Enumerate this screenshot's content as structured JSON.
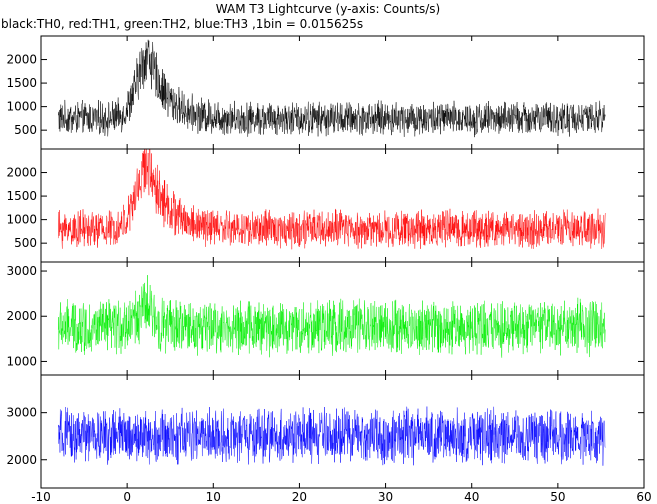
{
  "chart_data": {
    "type": "line",
    "title": "WAM T3 Lightcurve (y-axis: Counts/s)",
    "subtitle": "black:TH0, red:TH1, green:TH2, blue:TH3 ,1bin = 0.015625s",
    "xlabel": "",
    "ylabel": "",
    "xlim": [
      -10,
      60
    ],
    "x_ticks": [
      -10,
      0,
      10,
      20,
      30,
      40,
      50,
      60
    ],
    "grid": false,
    "legend": "none",
    "data_x_range": [
      -8,
      55.5
    ],
    "panels": [
      {
        "name": "TH0",
        "color": "#000000",
        "ylim": [
          100,
          2500
        ],
        "y_ticks": [
          500,
          1000,
          1500,
          2000
        ],
        "baseline": 750,
        "noise_amplitude": 300,
        "peak_center_x": 2.5,
        "peak_value": 2100,
        "decay_end_x": 7
      },
      {
        "name": "TH1",
        "color": "#ff0000",
        "ylim": [
          100,
          2500
        ],
        "y_ticks": [
          500,
          1000,
          1500,
          2000
        ],
        "baseline": 800,
        "noise_amplitude": 330,
        "peak_center_x": 2.5,
        "peak_value": 2200,
        "decay_end_x": 7
      },
      {
        "name": "TH2",
        "color": "#00ee00",
        "ylim": [
          700,
          3200
        ],
        "y_ticks": [
          1000,
          2000,
          3000
        ],
        "baseline": 1750,
        "noise_amplitude": 500,
        "peak_center_x": 2.5,
        "peak_value": 2200,
        "decay_end_x": 4
      },
      {
        "name": "TH3",
        "color": "#0000ff",
        "ylim": [
          1400,
          3800
        ],
        "y_ticks": [
          2000,
          3000
        ],
        "baseline": 2500,
        "noise_amplitude": 480,
        "peak_center_x": 2.5,
        "peak_value": 2500,
        "decay_end_x": 3
      }
    ]
  }
}
